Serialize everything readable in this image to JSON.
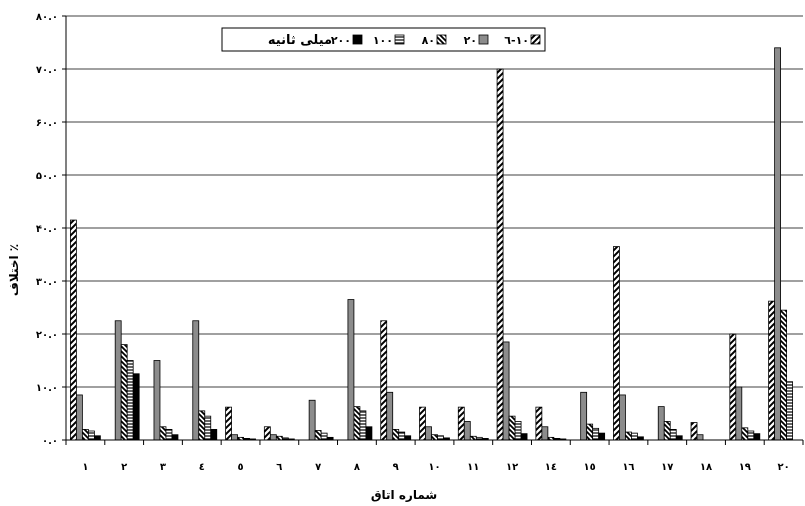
{
  "chart_data": {
    "type": "bar",
    "title": "",
    "xlabel": "شماره اتاق",
    "ylabel": "اختلاف ٪",
    "ylim": [
      0,
      80
    ],
    "yticks": [
      "۰.۰",
      "۱۰.۰",
      "۲۰.۰",
      "۳۰.۰",
      "۴۰.۰",
      "۵۰.۰",
      "۶۰.۰",
      "۷۰.۰",
      "۸۰.۰"
    ],
    "categories": [
      "۱",
      "۲",
      "۳",
      "٤",
      "٥",
      "٦",
      "۷",
      "۸",
      "۹",
      "۱۰",
      "۱۱",
      "۱۲",
      "١٤",
      "۱٥",
      "١٦",
      "۱۷",
      "١٨",
      "١٩",
      "۲۰"
    ],
    "legend_title": "میلی ثانیه",
    "legend_position": "top-center",
    "grid": true,
    "series": [
      {
        "name": "٦-۱۰",
        "pattern": "hatch-diagonal",
        "values": [
          41.5,
          0,
          0,
          0,
          6.2,
          2.5,
          0,
          0,
          22.5,
          6.2,
          6.2,
          70.0,
          6.2,
          0,
          36.5,
          0,
          3.3,
          20.0,
          26.2
        ]
      },
      {
        "name": "۲۰",
        "pattern": "solid-gray",
        "values": [
          8.5,
          22.5,
          15.0,
          22.5,
          1.0,
          1.0,
          7.5,
          26.5,
          9.0,
          2.5,
          3.5,
          18.5,
          2.5,
          9.0,
          8.5,
          6.3,
          1.0,
          10.0,
          74.0
        ]
      },
      {
        "name": "۸۰",
        "pattern": "hatch-thick",
        "values": [
          2.0,
          18.0,
          2.5,
          5.5,
          0.5,
          0.7,
          1.8,
          6.3,
          2.0,
          1.0,
          0.7,
          4.5,
          0.5,
          3.0,
          1.5,
          3.5,
          0,
          2.3,
          24.5
        ]
      },
      {
        "name": "۱۰۰",
        "pattern": "horizontal-lines",
        "values": [
          1.7,
          15.0,
          2.0,
          4.5,
          0.3,
          0.4,
          1.3,
          5.5,
          1.5,
          0.8,
          0.5,
          3.5,
          0.3,
          2.2,
          1.3,
          2.0,
          0,
          1.7,
          11.0
        ]
      },
      {
        "name": "۲۰۰",
        "pattern": "solid-black",
        "values": [
          0.8,
          12.5,
          1.0,
          2.0,
          0.2,
          0.2,
          0.5,
          2.5,
          0.8,
          0.4,
          0.3,
          1.2,
          0.2,
          1.3,
          0.6,
          0.8,
          0,
          1.2,
          0
        ]
      }
    ]
  }
}
